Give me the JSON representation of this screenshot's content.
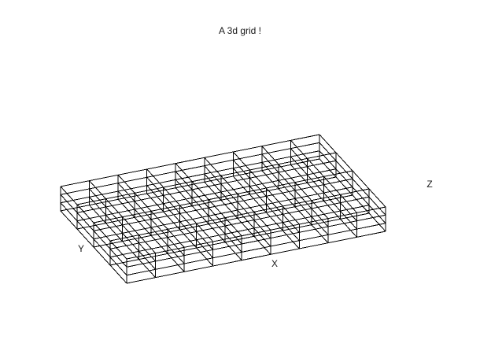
{
  "figure": {
    "title": "A 3d grid !",
    "axes": {
      "x": "X",
      "y": "Y",
      "z": "Z"
    }
  },
  "chart_data": {
    "type": "wireframe",
    "title": "A 3d grid !",
    "xlabel": "X",
    "ylabel": "Y",
    "zlabel": "Z",
    "grid": {
      "x_cells": 9,
      "y_cells": 4,
      "z_cells": 3
    },
    "line_color": "#000000"
  }
}
